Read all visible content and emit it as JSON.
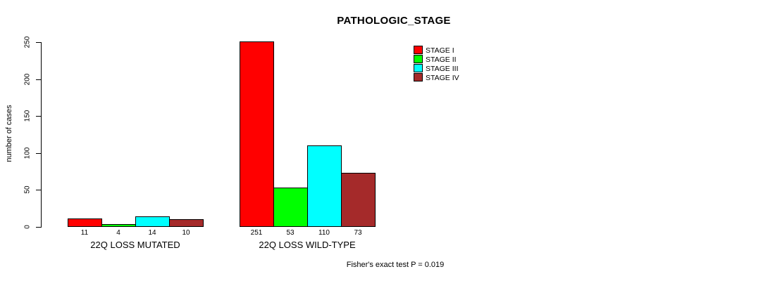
{
  "chart_data": {
    "type": "bar",
    "title": "PATHOLOGIC_STAGE",
    "xlabel": "",
    "ylabel": "number of cases",
    "ylim": [
      0,
      250
    ],
    "yticks": [
      0,
      50,
      100,
      150,
      200,
      250
    ],
    "grid": false,
    "legend_position": "top-right",
    "categories": [
      "22Q LOSS MUTATED",
      "22Q LOSS WILD-TYPE"
    ],
    "series": [
      {
        "name": "STAGE I",
        "color": "#FF0000",
        "values": [
          11,
          251
        ]
      },
      {
        "name": "STAGE II",
        "color": "#00FF00",
        "values": [
          4,
          53
        ]
      },
      {
        "name": "STAGE III",
        "color": "#00FFFF",
        "values": [
          14,
          110
        ]
      },
      {
        "name": "STAGE IV",
        "color": "#A52A2A",
        "values": [
          10,
          73
        ]
      }
    ],
    "bar_value_labels": [
      [
        11,
        4,
        14,
        10
      ],
      [
        251,
        53,
        110,
        73
      ]
    ],
    "annotation": "Fisher's exact test P = 0.019"
  }
}
